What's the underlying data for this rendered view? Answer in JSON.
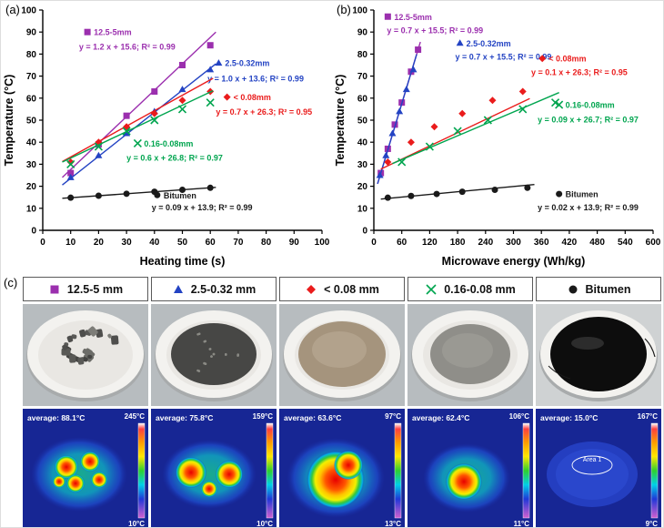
{
  "figure": {
    "panel_a_label": "(a)",
    "panel_b_label": "(b)",
    "panel_c_label": "(c)"
  },
  "chart_data": [
    {
      "id": "a",
      "type": "scatter",
      "title": "",
      "xlabel": "Heating time (s)",
      "ylabel": "Temperature (°C)",
      "xlim": [
        0,
        100
      ],
      "ylim": [
        0,
        100
      ],
      "xtick_step": 10,
      "ytick_step": 10,
      "grid": false,
      "series": [
        {
          "name": "12.5-5mm",
          "marker": "square",
          "color": "#9B2FAE",
          "x": [
            10,
            20,
            30,
            40,
            50,
            60
          ],
          "y": [
            26,
            39,
            52,
            63,
            75,
            84
          ],
          "fit": {
            "slope": 1.2,
            "intercept": 15.6,
            "range": [
              7,
              62
            ]
          },
          "equation": "y = 1.2 x + 15.6; R² = 0.99",
          "label_pos": [
            16,
            90
          ],
          "eq_pos": [
            13,
            83.5
          ]
        },
        {
          "name": "2.5-0.32mm",
          "marker": "triangle",
          "color": "#2343C3",
          "x": [
            10,
            20,
            30,
            40,
            50,
            60
          ],
          "y": [
            24,
            34,
            44,
            54,
            64,
            73
          ],
          "fit": {
            "slope": 1.0,
            "intercept": 13.6,
            "range": [
              7,
              62
            ]
          },
          "equation": "y = 1.0 x + 13.6; R² = 0.99",
          "label_pos": [
            63,
            76
          ],
          "eq_pos": [
            59,
            69
          ]
        },
        {
          "name": "< 0.08mm",
          "marker": "diamond",
          "color": "#EA1C1C",
          "x": [
            10,
            20,
            30,
            40,
            50,
            60
          ],
          "y": [
            31,
            40,
            47,
            53,
            59,
            63
          ],
          "fit": {
            "slope": 0.7,
            "intercept": 26.3,
            "range": [
              7,
              61
            ]
          },
          "equation": "y = 0.7 x + 26.3; R² = 0.95",
          "label_pos": [
            66,
            60.5
          ],
          "eq_pos": [
            62,
            54
          ]
        },
        {
          "name": "0.16-0.08mm",
          "marker": "x",
          "color": "#00A54F",
          "x": [
            10,
            20,
            30,
            40,
            50,
            60
          ],
          "y": [
            30,
            38,
            45,
            50,
            55,
            58
          ],
          "fit": {
            "slope": 0.6,
            "intercept": 26.8,
            "range": [
              7,
              61
            ]
          },
          "equation": "y = 0.6 x + 26.8; R² = 0.97",
          "label_pos": [
            34,
            39.5
          ],
          "eq_pos": [
            30,
            33
          ]
        },
        {
          "name": "Bitumen",
          "marker": "circle",
          "color": "#1A1A1A",
          "x": [
            10,
            20,
            30,
            40,
            50,
            60
          ],
          "y": [
            14.8,
            15.7,
            16.6,
            17.5,
            18.4,
            19.3
          ],
          "fit": {
            "slope": 0.09,
            "intercept": 13.9,
            "range": [
              7,
              62
            ]
          },
          "equation": "y = 0.09 x + 13.9; R² = 0.99",
          "label_pos": [
            41,
            16
          ],
          "eq_pos": [
            39,
            10.5
          ]
        }
      ]
    },
    {
      "id": "b",
      "type": "scatter",
      "title": "",
      "xlabel": "Microwave energy (Wh/kg)",
      "ylabel": "Temperature (°C)",
      "xlim": [
        0,
        600
      ],
      "ylim": [
        0,
        100
      ],
      "xtick_step": 60,
      "ytick_step": 10,
      "grid": false,
      "series": [
        {
          "name": "12.5-5mm",
          "marker": "square",
          "color": "#9B2FAE",
          "x": [
            15,
            30,
            45,
            60,
            80,
            95
          ],
          "y": [
            26,
            37,
            48,
            58,
            72,
            82
          ],
          "fit": {
            "slope": 0.7,
            "intercept": 15.5,
            "range": [
              8,
              100
            ]
          },
          "equation": "y = 0.7 x + 15.5; R² = 0.99",
          "label_pos": [
            30,
            97
          ],
          "eq_pos": [
            28,
            91
          ]
        },
        {
          "name": "2.5-0.32mm",
          "marker": "triangle",
          "color": "#2343C3",
          "x": [
            13,
            26,
            40,
            55,
            70,
            85
          ],
          "y": [
            25,
            34,
            44,
            54,
            64,
            73
          ],
          "fit": {
            "slope": 0.7,
            "intercept": 15.5,
            "range": [
              8,
              92
            ]
          },
          "equation": "y = 0.7 x + 15.5; R² = 0.99",
          "label_pos": [
            185,
            85
          ],
          "eq_pos": [
            175,
            79
          ]
        },
        {
          "name": "< 0.08mm",
          "marker": "diamond",
          "color": "#EA1C1C",
          "x": [
            30,
            80,
            130,
            190,
            255,
            320
          ],
          "y": [
            31,
            40,
            47,
            53,
            59,
            63
          ],
          "fit": {
            "slope": 0.1,
            "intercept": 26.3,
            "range": [
              15,
              335
            ]
          },
          "equation": "y = 0.1 x + 26.3; R² = 0.95",
          "label_pos": [
            362,
            78
          ],
          "eq_pos": [
            338,
            72
          ]
        },
        {
          "name": "0.16-0.08mm",
          "marker": "x",
          "color": "#00A54F",
          "x": [
            60,
            120,
            180,
            245,
            320,
            390
          ],
          "y": [
            31,
            38,
            45,
            50,
            55,
            58
          ],
          "fit": {
            "slope": 0.09,
            "intercept": 26.7,
            "range": [
              40,
              398
            ]
          },
          "equation": "y = 0.09 x + 26.7; R² = 0.97",
          "label_pos": [
            398,
            57
          ],
          "eq_pos": [
            352,
            50.5
          ]
        },
        {
          "name": "Bitumen",
          "marker": "circle",
          "color": "#1A1A1A",
          "x": [
            30,
            80,
            135,
            190,
            260,
            330
          ],
          "y": [
            14.8,
            15.6,
            16.5,
            17.5,
            18.4,
            19.3
          ],
          "fit": {
            "slope": 0.02,
            "intercept": 13.9,
            "range": [
              15,
              345
            ]
          },
          "equation": "y = 0.02 x + 13.9; R² = 0.99",
          "label_pos": [
            398,
            16.5
          ],
          "eq_pos": [
            352,
            10.5
          ]
        }
      ]
    }
  ],
  "panel_c": {
    "legend": [
      {
        "name": "12.5-5 mm",
        "marker": "square",
        "color": "#9B2FAE"
      },
      {
        "name": "2.5-0.32 mm",
        "marker": "triangle",
        "color": "#2343C3"
      },
      {
        "name": "< 0.08 mm",
        "marker": "diamond",
        "color": "#EA1C1C"
      },
      {
        "name": "0.16-0.08 mm",
        "marker": "x",
        "color": "#00A54F"
      },
      {
        "name": "Bitumen",
        "marker": "circle",
        "color": "#1A1A1A"
      }
    ],
    "samples": [
      {
        "id": "12.5-5mm",
        "photo": "coarse-aggregate",
        "average_label": "average: 88.1°C",
        "scale_max": "245°C",
        "scale_min": "10°C",
        "thermal_pattern": "spots"
      },
      {
        "id": "2.5-0.32mm",
        "photo": "fine-aggregate",
        "average_label": "average: 75.8°C",
        "scale_max": "159°C",
        "scale_min": "10°C",
        "thermal_pattern": "twin"
      },
      {
        "id": "<0.08mm",
        "photo": "brown-powder",
        "average_label": "average: 63.6°C",
        "scale_max": "97°C",
        "scale_min": "13°C",
        "thermal_pattern": "big"
      },
      {
        "id": "0.16-0.08mm",
        "photo": "gray-powder",
        "average_label": "average: 62.4°C",
        "scale_max": "106°C",
        "scale_min": "11°C",
        "thermal_pattern": "medium"
      },
      {
        "id": "bitumen",
        "photo": "bitumen",
        "average_label": "average: 15.0°C",
        "scale_max": "167°C",
        "scale_min": "9°C",
        "thermal_pattern": "cold",
        "area_label": "Area 1"
      }
    ]
  }
}
